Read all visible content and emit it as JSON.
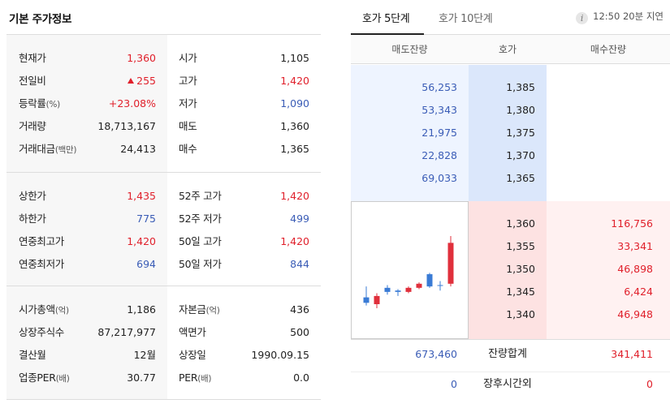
{
  "left": {
    "title": "기본 주가정보",
    "section1": [
      {
        "l1": "현재가",
        "u1": "",
        "v1": "1,360",
        "c1": "red",
        "arrow": false,
        "l2": "시가",
        "u2": "",
        "v2": "1,105",
        "c2": ""
      },
      {
        "l1": "전일비",
        "u1": "",
        "v1": "255",
        "c1": "red",
        "arrow": true,
        "l2": "고가",
        "u2": "",
        "v2": "1,420",
        "c2": "red"
      },
      {
        "l1": "등락률",
        "u1": "(%)",
        "v1": "+23.08%",
        "c1": "red",
        "arrow": false,
        "l2": "저가",
        "u2": "",
        "v2": "1,090",
        "c2": "blue"
      },
      {
        "l1": "거래량",
        "u1": "",
        "v1": "18,713,167",
        "c1": "",
        "arrow": false,
        "l2": "매도",
        "u2": "",
        "v2": "1,360",
        "c2": ""
      },
      {
        "l1": "거래대금",
        "u1": "(백만)",
        "v1": "24,413",
        "c1": "",
        "arrow": false,
        "l2": "매수",
        "u2": "",
        "v2": "1,365",
        "c2": ""
      }
    ],
    "section2": [
      {
        "l1": "상한가",
        "u1": "",
        "v1": "1,435",
        "c1": "red",
        "arrow": false,
        "l2": "52주 고가",
        "u2": "",
        "v2": "1,420",
        "c2": "red"
      },
      {
        "l1": "하한가",
        "u1": "",
        "v1": "775",
        "c1": "blue",
        "arrow": false,
        "l2": "52주 저가",
        "u2": "",
        "v2": "499",
        "c2": "blue"
      },
      {
        "l1": "연중최고가",
        "u1": "",
        "v1": "1,420",
        "c1": "red",
        "arrow": false,
        "l2": "50일 고가",
        "u2": "",
        "v2": "1,420",
        "c2": "red"
      },
      {
        "l1": "연중최저가",
        "u1": "",
        "v1": "694",
        "c1": "blue",
        "arrow": false,
        "l2": "50일 저가",
        "u2": "",
        "v2": "844",
        "c2": "blue"
      }
    ],
    "section3": [
      {
        "l1": "시가총액",
        "u1": "(억)",
        "v1": "1,186",
        "c1": "",
        "arrow": false,
        "l2": "자본금",
        "u2": "(억)",
        "v2": "436",
        "c2": ""
      },
      {
        "l1": "상장주식수",
        "u1": "",
        "v1": "87,217,977",
        "c1": "",
        "arrow": false,
        "l2": "액면가",
        "u2": "",
        "v2": "500",
        "c2": ""
      },
      {
        "l1": "결산월",
        "u1": "",
        "v1": "12월",
        "c1": "",
        "arrow": false,
        "l2": "상장일",
        "u2": "",
        "v2": "1990.09.15",
        "c2": ""
      },
      {
        "l1": "업종PER",
        "u1": "(배)",
        "v1": "30.77",
        "c1": "",
        "arrow": false,
        "l2": "PER",
        "u2": "(배)",
        "v2": "0.0",
        "c2": ""
      }
    ]
  },
  "right": {
    "tab_active": "호가 5단계",
    "tab_inactive": "호가 10단계",
    "info_icon": "i",
    "delay": "12:50 20분 지연",
    "headers": {
      "ask": "매도잔량",
      "price": "호가",
      "bid": "매수잔량"
    },
    "asks": [
      {
        "qty": "56,253",
        "price": "1,385"
      },
      {
        "qty": "53,343",
        "price": "1,380"
      },
      {
        "qty": "21,975",
        "price": "1,375"
      },
      {
        "qty": "22,828",
        "price": "1,370"
      },
      {
        "qty": "69,033",
        "price": "1,365"
      }
    ],
    "bids": [
      {
        "price": "1,360",
        "qty": "116,756"
      },
      {
        "price": "1,355",
        "qty": "33,341"
      },
      {
        "price": "1,350",
        "qty": "46,898"
      },
      {
        "price": "1,345",
        "qty": "6,424"
      },
      {
        "price": "1,340",
        "qty": "46,948"
      }
    ],
    "total": {
      "ask": "673,460",
      "label": "잔량합계",
      "bid": "341,411"
    },
    "after": {
      "ask": "0",
      "label": "장후시간외",
      "bid": "0"
    }
  },
  "mini_chart": {
    "candles": [
      {
        "o": 0.3,
        "c": 0.26,
        "h": 0.38,
        "l": 0.24,
        "color": "blue"
      },
      {
        "o": 0.25,
        "c": 0.31,
        "h": 0.33,
        "l": 0.22,
        "color": "red"
      },
      {
        "o": 0.37,
        "c": 0.34,
        "h": 0.39,
        "l": 0.32,
        "color": "blue"
      },
      {
        "o": 0.34,
        "c": 0.35,
        "h": 0.36,
        "l": 0.31,
        "color": "blue"
      },
      {
        "o": 0.34,
        "c": 0.37,
        "h": 0.38,
        "l": 0.33,
        "color": "red"
      },
      {
        "o": 0.37,
        "c": 0.4,
        "h": 0.41,
        "l": 0.36,
        "color": "red"
      },
      {
        "o": 0.47,
        "c": 0.38,
        "h": 0.48,
        "l": 0.37,
        "color": "blue"
      },
      {
        "o": 0.39,
        "c": 0.39,
        "h": 0.42,
        "l": 0.35,
        "color": "blue"
      },
      {
        "o": 0.4,
        "c": 0.7,
        "h": 0.75,
        "l": 0.38,
        "color": "red"
      }
    ],
    "colors": {
      "red": "#e0303c",
      "blue": "#3a7bd5"
    }
  }
}
